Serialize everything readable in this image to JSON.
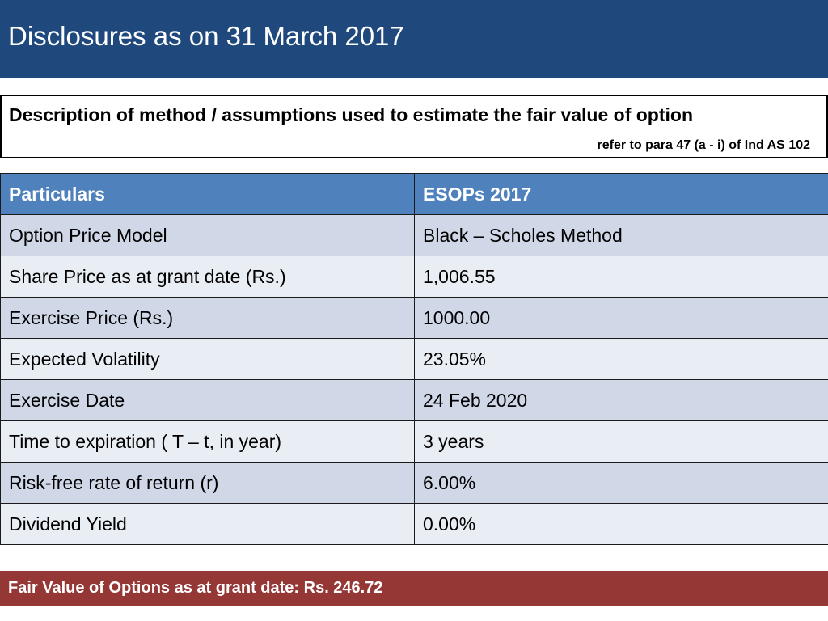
{
  "header": {
    "title": "Disclosures as on 31 March 2017"
  },
  "description": {
    "title": "Description of method / assumptions used to estimate the fair value of option",
    "reference": "refer to para 47 (a - i) of Ind AS 102"
  },
  "table": {
    "headers": [
      "Particulars",
      "ESOPs 2017"
    ],
    "rows": [
      [
        "Option Price Model",
        "Black – Scholes Method"
      ],
      [
        "Share Price as at grant date (Rs.)",
        "1,006.55"
      ],
      [
        "Exercise Price (Rs.)",
        "1000.00"
      ],
      [
        "Expected Volatility",
        "23.05%"
      ],
      [
        "Exercise Date",
        "24 Feb 2020"
      ],
      [
        "Time to expiration ( T – t, in year)",
        "3 years"
      ],
      [
        "Risk-free rate of return (r)",
        "6.00%"
      ],
      [
        "Dividend Yield",
        "0.00%"
      ]
    ]
  },
  "footer": {
    "fair_value": "Fair Value of Options as at grant date: Rs. 246.72"
  },
  "colors": {
    "title_bar": "#1f497d",
    "table_header": "#4f81bd",
    "row_odd": "#d0d8e8",
    "row_even": "#e9edf4",
    "footer_bar": "#953735"
  }
}
